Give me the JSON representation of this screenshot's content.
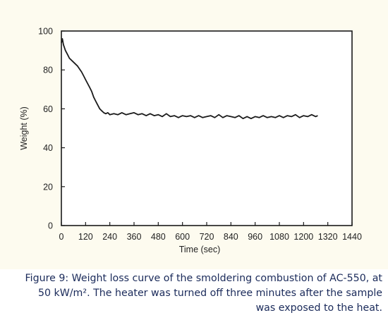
{
  "chart_data": {
    "type": "line",
    "title": "",
    "xlabel": "Time (sec)",
    "ylabel": "Weight (%)",
    "xlim": [
      0,
      1440
    ],
    "ylim": [
      0,
      100
    ],
    "x_ticks": [
      0,
      120,
      240,
      360,
      480,
      600,
      720,
      840,
      960,
      1080,
      1200,
      1320,
      1440
    ],
    "y_ticks": [
      0,
      20,
      40,
      60,
      80,
      100
    ],
    "grid": false,
    "series": [
      {
        "x": [
          0,
          5,
          10,
          20,
          30,
          40,
          60,
          80,
          100,
          110,
          120,
          130,
          140,
          150,
          160,
          170,
          180,
          190,
          200,
          210,
          220,
          230,
          240,
          260,
          280,
          300,
          320,
          340,
          360,
          380,
          400,
          420,
          440,
          460,
          480,
          500,
          520,
          540,
          560,
          580,
          600,
          620,
          640,
          660,
          680,
          700,
          720,
          740,
          760,
          780,
          800,
          820,
          840,
          860,
          880,
          900,
          920,
          940,
          960,
          980,
          1000,
          1020,
          1040,
          1060,
          1080,
          1100,
          1120,
          1140,
          1160,
          1180,
          1200,
          1220,
          1240,
          1260,
          1270
        ],
        "y": [
          94,
          96,
          93,
          90,
          88,
          86,
          84,
          82,
          79,
          77,
          75,
          73,
          71,
          69,
          66,
          64,
          62,
          60,
          59,
          58,
          57.5,
          58,
          57,
          57.5,
          57,
          58,
          57,
          57.5,
          58,
          57,
          57.5,
          56.5,
          57.5,
          56.5,
          57,
          56,
          57.5,
          56,
          56.5,
          55.5,
          56.5,
          56,
          56.5,
          55.5,
          56.5,
          55.5,
          56,
          56.5,
          55.5,
          57,
          55.5,
          56.5,
          56,
          55.5,
          56.5,
          55,
          56,
          55,
          56,
          55.5,
          56.5,
          55.5,
          56,
          55.5,
          56.5,
          55.5,
          56.5,
          56,
          57,
          55.5,
          56.5,
          56,
          57,
          56,
          56.5
        ]
      }
    ]
  },
  "caption": {
    "line1": "Figure 9: Weight loss curve of the smoldering combustion of AC-550, at",
    "line2": "50 kW/m². The heater was turned off three minutes after the sample",
    "line3": "was exposed to the heat."
  }
}
